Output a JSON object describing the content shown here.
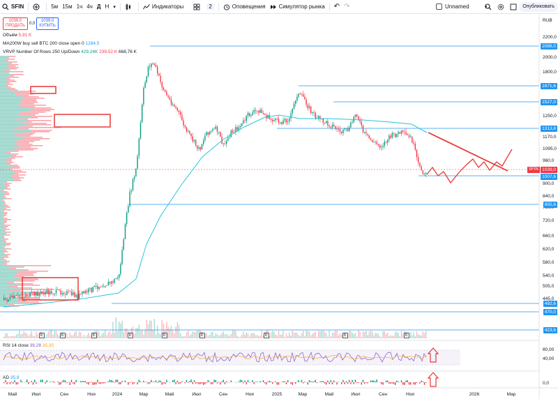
{
  "toolbar": {
    "symbol": "SFIN",
    "intervals": [
      "5м",
      "15м",
      "1ч",
      "4ч",
      "Д",
      "Н"
    ],
    "active_interval": "Д",
    "indicators_label": "Индикаторы",
    "layouts_count": "2",
    "alerts_label": "Оповещения",
    "replay_label": "Симулятор рынка",
    "layout_name": "Unnamed",
    "publish_label": "Опубликовать"
  },
  "trade": {
    "sell_price": "1039,0",
    "sell_label": "ПРОДАТЬ",
    "spread": "0,0",
    "buy_price": "1039,0",
    "buy_label": "КУПИТЬ"
  },
  "legend": {
    "volume_label": "Объём",
    "volume_value": "5,91 K",
    "ma_label": "MA200W buy sell BTC 200 close open 0",
    "ma_value": "1284,5",
    "vrvp_label": "VRVP Number Of Rows 250 Up/Down",
    "vrvp_up": "429,24K",
    "vrvp_down": "239,52 K",
    "vrvp_total": "668,76 K"
  },
  "price_axis": {
    "currency": "RUB",
    "ticks": [
      "2200,0",
      "2000,0",
      "1800,0",
      "1600,0",
      "1410,0",
      "1250,0",
      "1170,0",
      "1095,0",
      "960,0",
      "900,0",
      "840,0",
      "780,0",
      "720,0",
      "660,0",
      "620,0",
      "580,0",
      "540,0",
      "505,0",
      "445,0"
    ],
    "levels": [
      "2086,0",
      "1671,6",
      "1527,0",
      "1313,8",
      "1039,0",
      "1007,6",
      "855,6",
      "492,6",
      "470,0",
      "423,6"
    ],
    "current_symbol": "SFIN",
    "current_price": "1039,0"
  },
  "time_axis": {
    "labels": [
      "Май",
      "Июл",
      "Сен",
      "Ноя",
      "2024",
      "Мар",
      "Май",
      "Июл",
      "Сен",
      "Ноя",
      "2025",
      "Мар",
      "Май",
      "Июл",
      "Сен",
      "Ноя",
      "2026",
      "Мар"
    ]
  },
  "rsi": {
    "label": "RSI 14 close",
    "value1": "39,28",
    "value2": "35,35",
    "ticks": [
      "80,00",
      "40,00"
    ]
  },
  "ad": {
    "label": "AD",
    "value": "35,9",
    "tick": "0,0"
  },
  "earnings_marker": "E",
  "colors": {
    "up": "#089981",
    "down": "#f23645",
    "ma": "#26c6da",
    "level": "#2196f3",
    "annotation": "#e53935"
  }
}
